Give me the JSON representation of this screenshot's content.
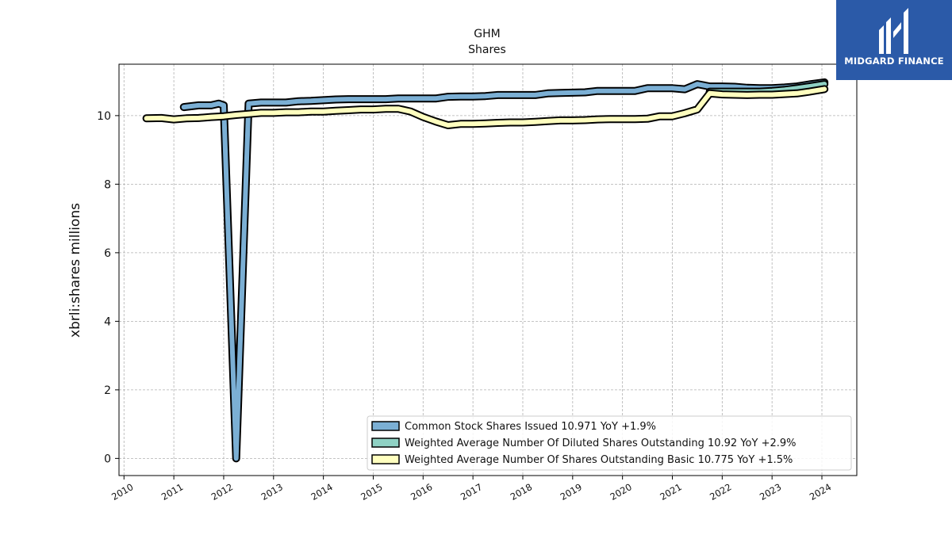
{
  "title": "GHM",
  "subtitle": "Shares",
  "logo": {
    "text": "MIDGARD FINANCE",
    "background": "#2b5aa8"
  },
  "chart_data": {
    "type": "line",
    "title": "GHM",
    "subtitle": "Shares",
    "xlabel": "",
    "ylabel": "xbrli:shares millions",
    "xlim": [
      2009.9,
      2024.7
    ],
    "ylim": [
      -0.5,
      11.5
    ],
    "xticks": [
      "2010",
      "2011",
      "2012",
      "2013",
      "2014",
      "2015",
      "2016",
      "2017",
      "2018",
      "2019",
      "2020",
      "2021",
      "2022",
      "2023",
      "2024"
    ],
    "yticks": [
      "0",
      "2",
      "4",
      "6",
      "8",
      "10"
    ],
    "grid": true,
    "legend_position": "bottom-right",
    "series": [
      {
        "name": "Common Stock Shares Issued  10.971 YoY +1.9%",
        "color": "#7bafd4",
        "segments": [
          [
            [
              2011.2,
              10.25
            ],
            [
              2011.5,
              10.3
            ],
            [
              2011.75,
              10.3
            ],
            [
              2011.9,
              10.35
            ],
            [
              2012.0,
              10.3
            ],
            [
              2012.25,
              0.0
            ],
            [
              2012.5,
              10.35
            ],
            [
              2012.75,
              10.38
            ],
            [
              2013.0,
              10.38
            ],
            [
              2013.25,
              10.38
            ],
            [
              2013.5,
              10.42
            ],
            [
              2013.75,
              10.43
            ],
            [
              2014.0,
              10.45
            ],
            [
              2014.25,
              10.47
            ],
            [
              2014.5,
              10.48
            ],
            [
              2014.75,
              10.48
            ],
            [
              2015.0,
              10.48
            ],
            [
              2015.25,
              10.48
            ],
            [
              2015.5,
              10.5
            ],
            [
              2015.75,
              10.5
            ],
            [
              2016.0,
              10.5
            ],
            [
              2016.25,
              10.5
            ],
            [
              2016.5,
              10.55
            ],
            [
              2016.75,
              10.56
            ],
            [
              2017.0,
              10.56
            ],
            [
              2017.25,
              10.57
            ],
            [
              2017.5,
              10.6
            ],
            [
              2017.75,
              10.6
            ],
            [
              2018.0,
              10.6
            ],
            [
              2018.25,
              10.6
            ],
            [
              2018.5,
              10.65
            ],
            [
              2018.75,
              10.66
            ],
            [
              2019.0,
              10.67
            ],
            [
              2019.25,
              10.68
            ],
            [
              2019.5,
              10.72
            ],
            [
              2019.75,
              10.72
            ],
            [
              2020.0,
              10.72
            ],
            [
              2020.25,
              10.72
            ],
            [
              2020.5,
              10.8
            ],
            [
              2020.75,
              10.8
            ],
            [
              2021.0,
              10.8
            ],
            [
              2021.25,
              10.77
            ],
            [
              2021.5,
              10.92
            ],
            [
              2021.75,
              10.85
            ],
            [
              2022.0,
              10.85
            ],
            [
              2022.25,
              10.84
            ],
            [
              2022.5,
              10.81
            ],
            [
              2022.75,
              10.8
            ],
            [
              2023.0,
              10.8
            ],
            [
              2023.25,
              10.82
            ],
            [
              2023.5,
              10.85
            ],
            [
              2023.75,
              10.91
            ],
            [
              2024.05,
              10.971
            ]
          ]
        ]
      },
      {
        "name": "Weighted Average Number Of Diluted Shares Outstanding  10.92 YoY +2.9%",
        "color": "#8fd1c4",
        "segments": [
          [
            [
              2021.75,
              10.7
            ],
            [
              2022.0,
              10.7
            ],
            [
              2022.25,
              10.7
            ],
            [
              2022.5,
              10.7
            ],
            [
              2022.75,
              10.7
            ],
            [
              2023.0,
              10.72
            ],
            [
              2023.25,
              10.75
            ],
            [
              2023.5,
              10.8
            ],
            [
              2023.75,
              10.85
            ],
            [
              2024.05,
              10.92
            ]
          ]
        ]
      },
      {
        "name": "Weighted Average Number Of Shares Outstanding Basic  10.775 YoY +1.5%",
        "color": "#ffffbf",
        "segments": [
          [
            [
              2010.45,
              9.92
            ],
            [
              2010.75,
              9.93
            ],
            [
              2011.0,
              9.89
            ],
            [
              2011.25,
              9.92
            ],
            [
              2011.5,
              9.93
            ],
            [
              2011.75,
              9.96
            ],
            [
              2012.0,
              9.98
            ],
            [
              2012.25,
              10.02
            ],
            [
              2012.5,
              10.05
            ],
            [
              2012.75,
              10.08
            ],
            [
              2013.0,
              10.08
            ],
            [
              2013.25,
              10.1
            ],
            [
              2013.5,
              10.1
            ],
            [
              2013.75,
              10.12
            ],
            [
              2014.0,
              10.12
            ],
            [
              2014.25,
              10.14
            ],
            [
              2014.5,
              10.16
            ],
            [
              2014.75,
              10.18
            ],
            [
              2015.0,
              10.18
            ],
            [
              2015.25,
              10.2
            ],
            [
              2015.5,
              10.2
            ],
            [
              2015.75,
              10.12
            ],
            [
              2016.0,
              9.96
            ],
            [
              2016.25,
              9.83
            ],
            [
              2016.5,
              9.72
            ],
            [
              2016.75,
              9.76
            ],
            [
              2017.0,
              9.76
            ],
            [
              2017.25,
              9.77
            ],
            [
              2017.5,
              9.79
            ],
            [
              2017.75,
              9.8
            ],
            [
              2018.0,
              9.8
            ],
            [
              2018.25,
              9.82
            ],
            [
              2018.5,
              9.84
            ],
            [
              2018.75,
              9.86
            ],
            [
              2019.0,
              9.86
            ],
            [
              2019.25,
              9.87
            ],
            [
              2019.5,
              9.89
            ],
            [
              2019.75,
              9.9
            ],
            [
              2020.0,
              9.9
            ],
            [
              2020.25,
              9.9
            ],
            [
              2020.5,
              9.91
            ],
            [
              2020.75,
              9.98
            ],
            [
              2021.0,
              9.98
            ],
            [
              2021.25,
              10.07
            ],
            [
              2021.5,
              10.18
            ],
            [
              2021.75,
              10.65
            ],
            [
              2022.0,
              10.62
            ],
            [
              2022.25,
              10.61
            ],
            [
              2022.5,
              10.6
            ],
            [
              2022.75,
              10.61
            ],
            [
              2023.0,
              10.61
            ],
            [
              2023.25,
              10.63
            ],
            [
              2023.5,
              10.65
            ],
            [
              2023.75,
              10.7
            ],
            [
              2024.05,
              10.775
            ]
          ]
        ]
      }
    ]
  }
}
